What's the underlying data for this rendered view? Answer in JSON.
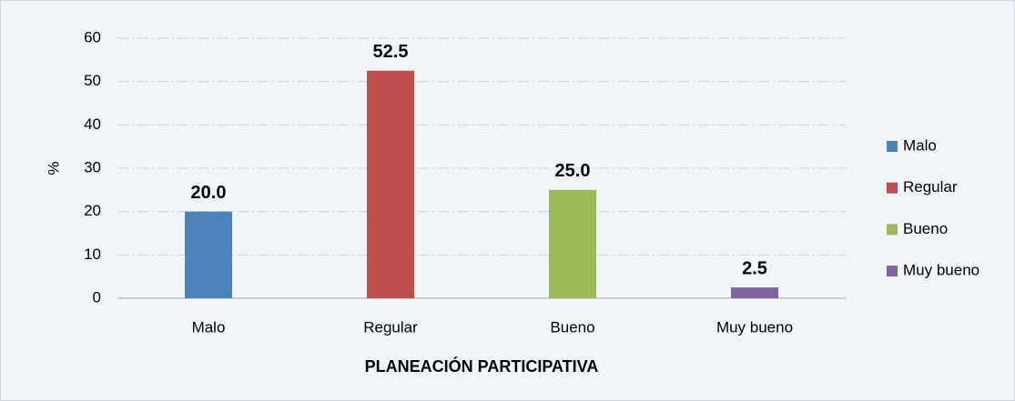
{
  "chart_data": {
    "type": "bar",
    "x_label": "PLANEACIÓN PARTICIPATIVA",
    "y_label": "%",
    "categories": [
      "Malo",
      "Regular",
      "Bueno",
      "Muy bueno"
    ],
    "values": [
      20,
      52.5,
      25,
      2.5
    ],
    "value_labels": [
      "20.0",
      "52.5",
      "25.0",
      "2.5"
    ],
    "colors": [
      "#4f81bd",
      "#c0504d",
      "#9bbb59",
      "#8064a2"
    ],
    "ylim": [
      0,
      60
    ],
    "yticks": [
      0,
      10,
      20,
      30,
      40,
      50,
      60
    ],
    "grid": true,
    "legend": "right"
  }
}
